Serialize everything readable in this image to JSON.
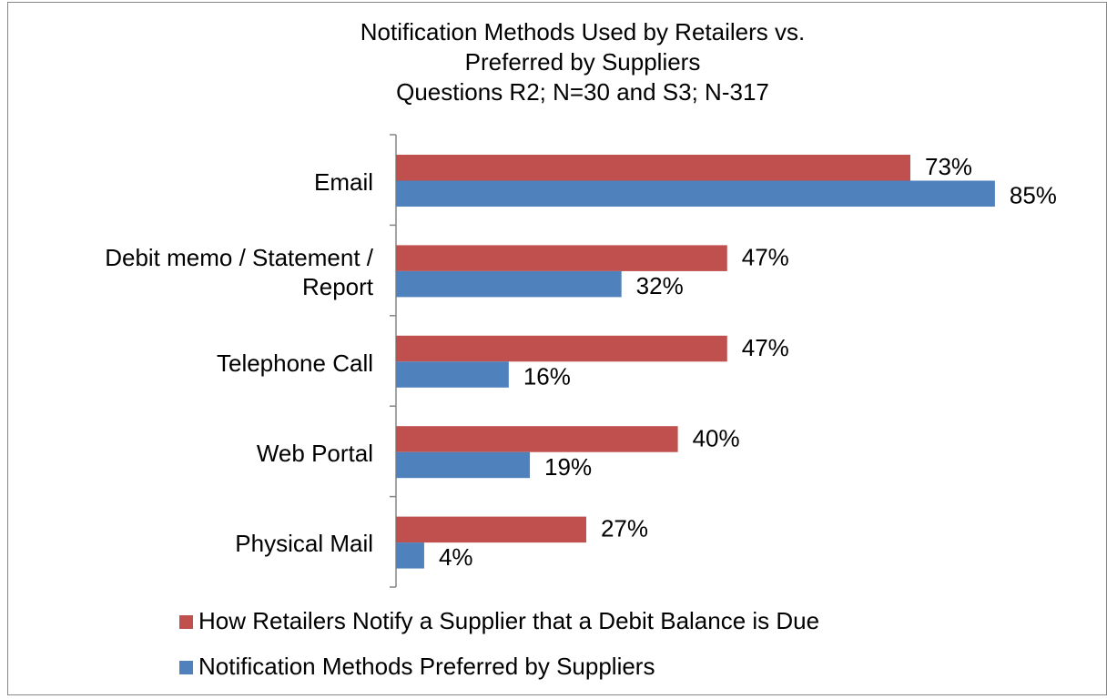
{
  "chart_data": {
    "type": "hbar",
    "title": [
      "Notification Methods Used by Retailers vs.",
      "Preferred by Suppliers"
    ],
    "subtitle": "Questions R2; N=30 and S3; N-317",
    "categories": [
      "Email",
      "Debit memo / Statement / Report",
      "Telephone Call",
      "Web Portal",
      "Physical Mail"
    ],
    "series": [
      {
        "name": "How Retailers Notify a Supplier that a Debit Balance is Due",
        "color": "#c0504d",
        "values": [
          73,
          47,
          47,
          40,
          27
        ],
        "value_labels": [
          "73%",
          "47%",
          "47%",
          "40%",
          "27%"
        ]
      },
      {
        "name": "Notification Methods Preferred by Suppliers",
        "color": "#4f81bd",
        "values": [
          85,
          32,
          16,
          19,
          4
        ],
        "value_labels": [
          "85%",
          "32%",
          "16%",
          "19%",
          "4%"
        ]
      }
    ],
    "legend": "bottom"
  }
}
